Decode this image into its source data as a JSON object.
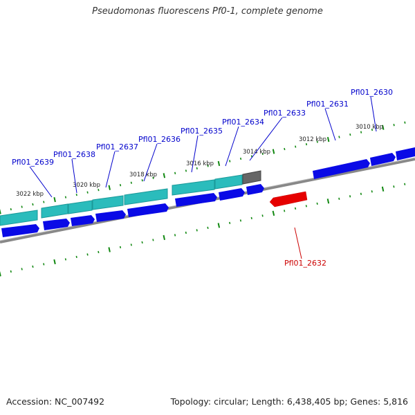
{
  "title": "Pseudomonas fluorescens Pf0-1, complete genome",
  "footer": {
    "accession": "Accession: NC_007492",
    "summary": "Topology: circular; Length: 6,438,405 bp; Genes: 5,816"
  },
  "colors": {
    "forward_gene": "#0000ee",
    "reverse_gene": "#ee0000",
    "cds_feature": "#33cccc",
    "other_feature": "#666666",
    "backbone": "#888888",
    "ticks": "#118811",
    "forward_label": "#0000cc",
    "reverse_label": "#cc0000"
  },
  "scale_labels": [
    "3010 kbp",
    "3012 kbp",
    "3014 kbp",
    "3016 kbp",
    "3018 kbp",
    "3020 kbp",
    "3022 kbp"
  ],
  "genes": [
    {
      "label": "Pfl01_2630",
      "strand": "forward"
    },
    {
      "label": "Pfl01_2631",
      "strand": "forward"
    },
    {
      "label": "Pfl01_2632",
      "strand": "reverse"
    },
    {
      "label": "Pfl01_2633",
      "strand": "forward"
    },
    {
      "label": "Pfl01_2634",
      "strand": "forward"
    },
    {
      "label": "Pfl01_2635",
      "strand": "forward"
    },
    {
      "label": "Pfl01_2636",
      "strand": "forward"
    },
    {
      "label": "Pfl01_2637",
      "strand": "forward"
    },
    {
      "label": "Pfl01_2638",
      "strand": "forward"
    },
    {
      "label": "Pfl01_2639",
      "strand": "forward"
    }
  ]
}
